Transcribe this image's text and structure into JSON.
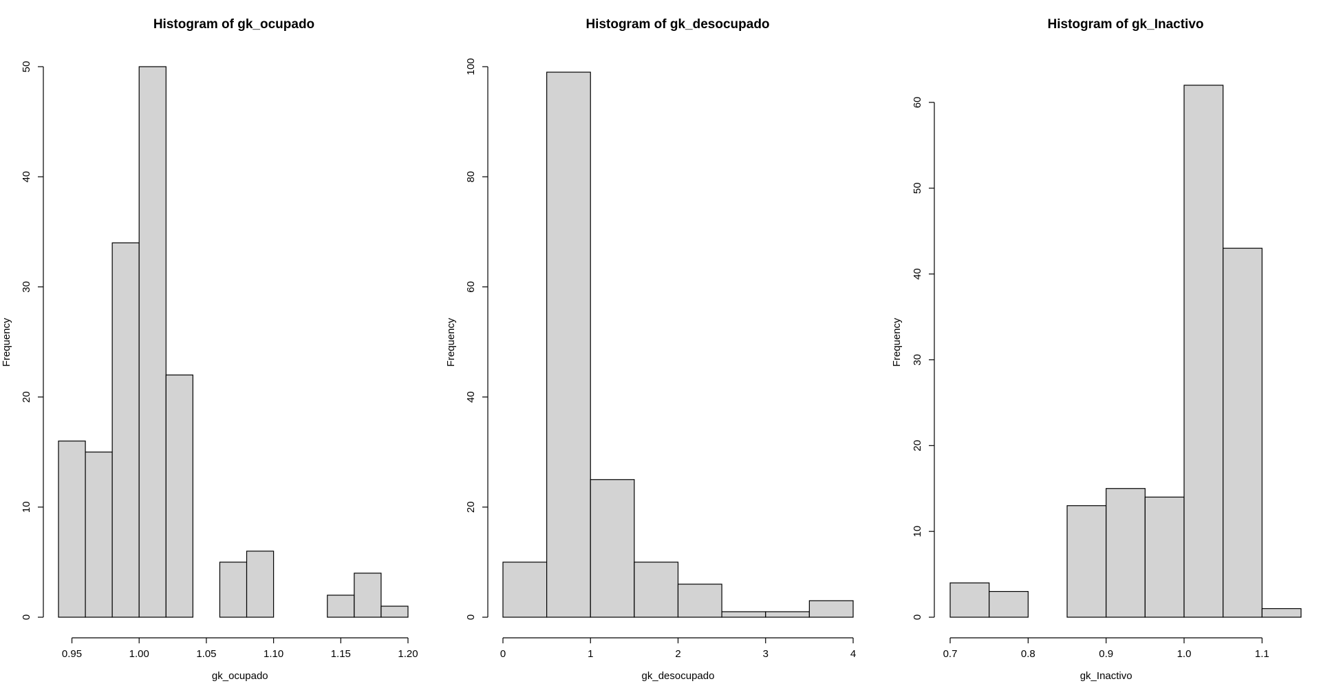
{
  "chart_data": [
    {
      "type": "bar",
      "title": "Histogram of gk_ocupado",
      "xlabel": "gk_ocupado",
      "ylabel": "Frequency",
      "bin_edges": [
        0.94,
        0.96,
        0.98,
        1.0,
        1.02,
        1.04,
        1.06,
        1.08,
        1.1,
        1.12,
        1.14,
        1.16,
        1.18,
        1.2
      ],
      "values": [
        16,
        15,
        34,
        50,
        22,
        0,
        5,
        6,
        0,
        0,
        2,
        4,
        1
      ],
      "xticks": [
        0.95,
        1.0,
        1.05,
        1.1,
        1.15,
        1.2
      ],
      "xtick_labels": [
        "0.95",
        "1.00",
        "1.05",
        "1.10",
        "1.15",
        "1.20"
      ],
      "yticks": [
        0,
        10,
        20,
        30,
        40,
        50
      ],
      "ytick_labels": [
        "0",
        "10",
        "20",
        "30",
        "40",
        "50"
      ],
      "xlim": [
        0.94,
        1.2
      ],
      "ylim": [
        0,
        50
      ],
      "grid": false,
      "fill_color": "#d3d3d3"
    },
    {
      "type": "bar",
      "title": "Histogram of gk_desocupado",
      "xlabel": "gk_desocupado",
      "ylabel": "Frequency",
      "bin_edges": [
        0,
        0.5,
        1.0,
        1.5,
        2.0,
        2.5,
        3.0,
        3.5,
        4.0
      ],
      "values": [
        10,
        99,
        25,
        10,
        6,
        1,
        1,
        3
      ],
      "xticks": [
        0,
        1,
        2,
        3,
        4
      ],
      "xtick_labels": [
        "0",
        "1",
        "2",
        "3",
        "4"
      ],
      "yticks": [
        0,
        20,
        40,
        60,
        80,
        100
      ],
      "ytick_labels": [
        "0",
        "20",
        "40",
        "60",
        "80",
        "100"
      ],
      "xlim": [
        0,
        4
      ],
      "ylim": [
        0,
        100
      ],
      "grid": false,
      "fill_color": "#d3d3d3"
    },
    {
      "type": "bar",
      "title": "Histogram of gk_Inactivo",
      "xlabel": "gk_Inactivo",
      "ylabel": "Frequency",
      "bin_edges": [
        0.7,
        0.75,
        0.8,
        0.85,
        0.9,
        0.95,
        1.0,
        1.05,
        1.1,
        1.15
      ],
      "values": [
        4,
        3,
        0,
        13,
        15,
        14,
        62,
        43,
        1
      ],
      "xticks": [
        0.7,
        0.8,
        0.9,
        1.0,
        1.1
      ],
      "xtick_labels": [
        "0.7",
        "0.8",
        "0.9",
        "1.0",
        "1.1"
      ],
      "yticks": [
        0,
        10,
        20,
        30,
        40,
        50,
        60
      ],
      "ytick_labels": [
        "0",
        "10",
        "20",
        "30",
        "40",
        "50",
        "60"
      ],
      "xlim": [
        0.7,
        1.15
      ],
      "ylim": [
        0,
        62
      ],
      "grid": false,
      "fill_color": "#d3d3d3"
    }
  ]
}
